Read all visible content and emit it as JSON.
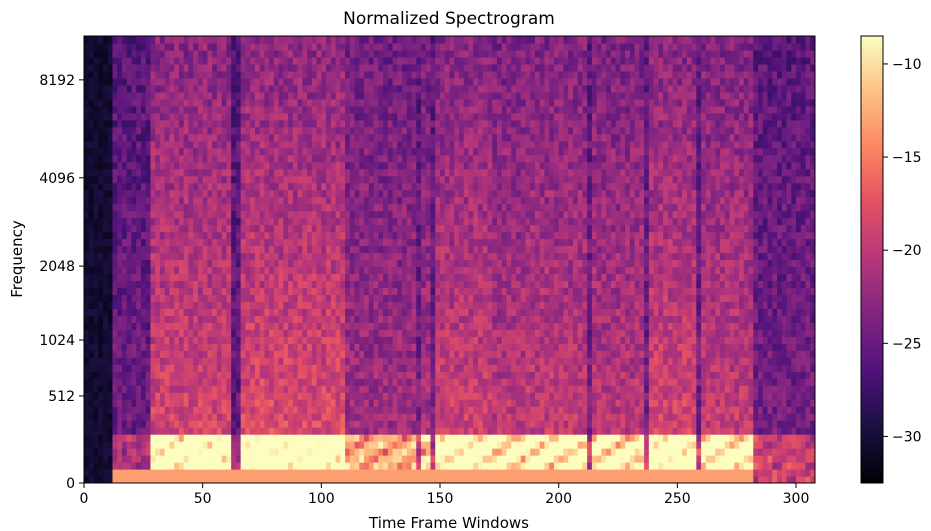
{
  "chart_data": {
    "type": "heatmap",
    "title": "Normalized Spectrogram",
    "xlabel": "Time Frame Windows",
    "ylabel": "Frequency",
    "x_ticks": [
      0,
      50,
      100,
      150,
      200,
      250,
      300
    ],
    "xlim": [
      0,
      308
    ],
    "y_scale": "log-like (mel)",
    "y_ticks": [
      {
        "value": 0,
        "label": "0"
      },
      {
        "value": 512,
        "label": "512"
      },
      {
        "value": 1024,
        "label": "1024"
      },
      {
        "value": 2048,
        "label": "2048"
      },
      {
        "value": 4096,
        "label": "4096"
      },
      {
        "value": 8192,
        "label": "8192"
      }
    ],
    "colormap": "magma",
    "colorbar": {
      "ticks": [
        {
          "value": -10,
          "label": "−10"
        },
        {
          "value": -15,
          "label": "−15"
        },
        {
          "value": -20,
          "label": "−20"
        },
        {
          "value": -25,
          "label": "−25"
        },
        {
          "value": -30,
          "label": "−30"
        }
      ],
      "range": [
        -32.5,
        -8.5
      ]
    },
    "energy_events": [
      {
        "start": 0,
        "end": 12,
        "level": 0.0
      },
      {
        "start": 12,
        "end": 29,
        "level": 0.25
      },
      {
        "start": 29,
        "end": 62,
        "level": 0.85
      },
      {
        "start": 62,
        "end": 66,
        "level": 0.2
      },
      {
        "start": 66,
        "end": 110,
        "level": 0.9
      },
      {
        "start": 110,
        "end": 140,
        "level": 0.55
      },
      {
        "start": 142,
        "end": 146,
        "level": 0.6
      },
      {
        "start": 148,
        "end": 172,
        "level": 0.8
      },
      {
        "start": 172,
        "end": 186,
        "level": 0.7
      },
      {
        "start": 186,
        "end": 212,
        "level": 0.75
      },
      {
        "start": 214,
        "end": 236,
        "level": 0.7
      },
      {
        "start": 238,
        "end": 258,
        "level": 0.85
      },
      {
        "start": 260,
        "end": 283,
        "level": 0.75
      },
      {
        "start": 283,
        "end": 308,
        "level": 0.3
      }
    ],
    "grid": false
  }
}
